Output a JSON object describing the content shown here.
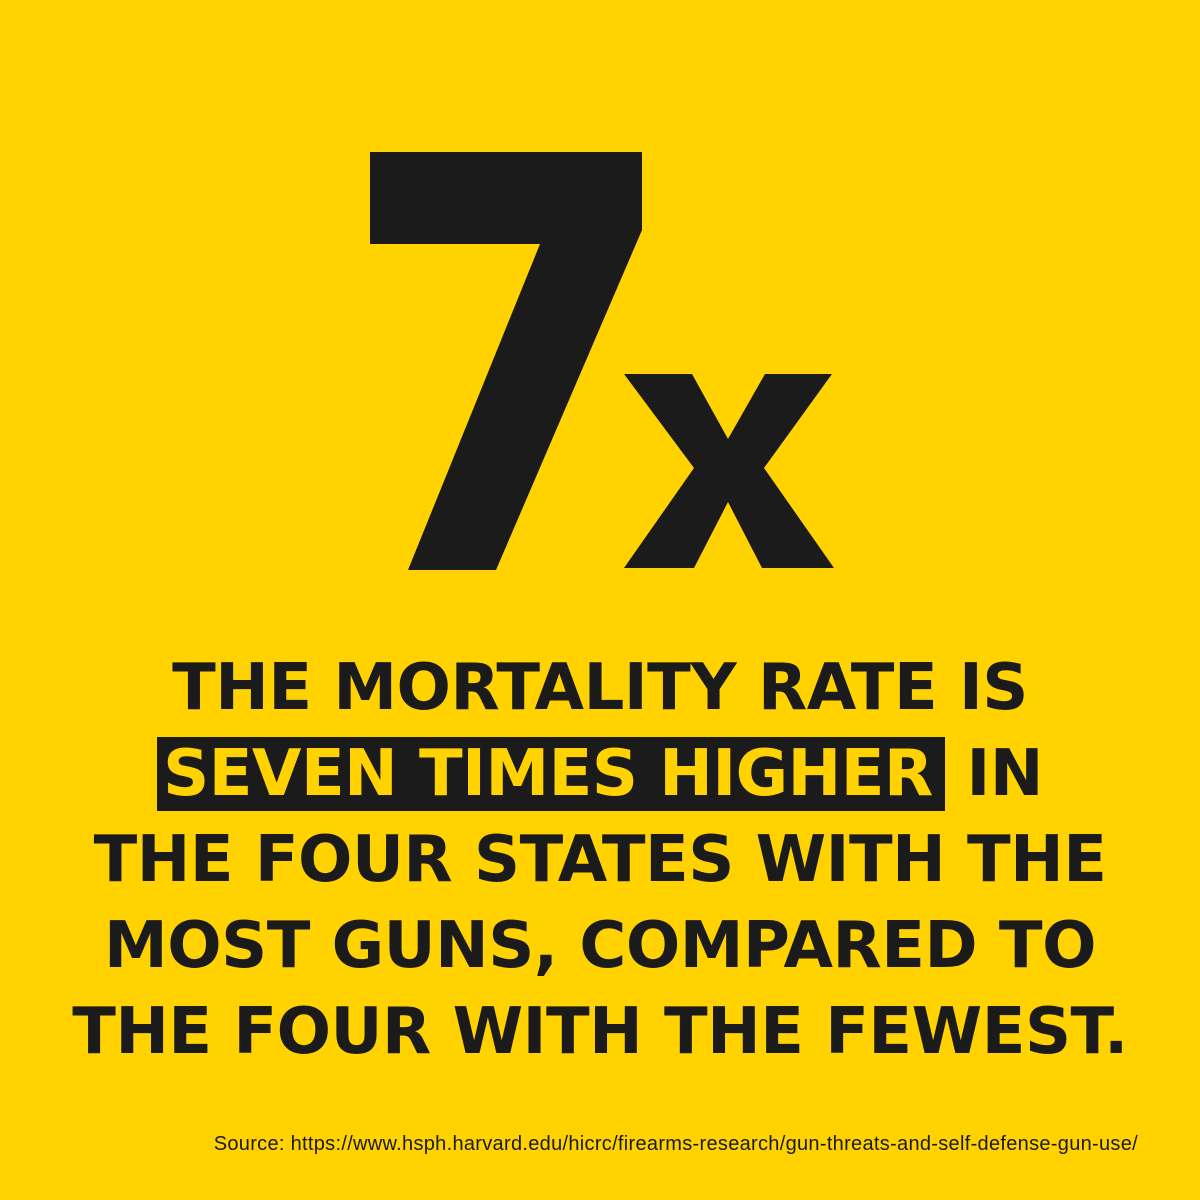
{
  "colors": {
    "background": "#FFD200",
    "text": "#1b1b1b",
    "highlight_background": "#1b1b1b",
    "highlight_text": "#FFD200"
  },
  "stat": {
    "value": "7x"
  },
  "headline": {
    "line1": "THE MORTALITY RATE IS",
    "line2_highlight": "SEVEN TIMES HIGHER",
    "line2_rest": " IN",
    "line3": "THE FOUR STATES WITH THE",
    "line4": "MOST GUNS, COMPARED TO",
    "line5": "THE FOUR WITH THE FEWEST."
  },
  "source": {
    "text": "Source: https://www.hsph.harvard.edu/hicrc/firearms-research/gun-threats-and-self-defense-gun-use/"
  }
}
